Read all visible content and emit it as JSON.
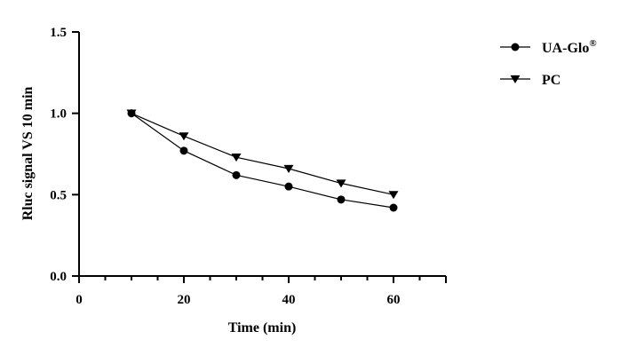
{
  "chart_data": {
    "type": "line",
    "xlabel": "Time (min)",
    "ylabel": "Rluc signal VS 10 min",
    "xlim": [
      0,
      70
    ],
    "ylim": [
      0.0,
      1.5
    ],
    "x_ticks": [
      0,
      20,
      40,
      60
    ],
    "x_tick_labels": [
      "0",
      "20",
      "40",
      "60"
    ],
    "x_minor_step": 5,
    "y_ticks": [
      0.0,
      0.5,
      1.0,
      1.5
    ],
    "y_tick_labels": [
      "0.0",
      "0.5",
      "1.0",
      "1.5"
    ],
    "grid": false,
    "legend_position": "top-right",
    "series": [
      {
        "name": "UA-Glo",
        "name_superscript": "®",
        "marker": "circle",
        "color": "#000000",
        "x": [
          10,
          20,
          30,
          40,
          50,
          60
        ],
        "y": [
          1.0,
          0.77,
          0.62,
          0.55,
          0.47,
          0.42
        ]
      },
      {
        "name": "PC",
        "marker": "triangle-down",
        "color": "#000000",
        "x": [
          10,
          20,
          30,
          40,
          50,
          60
        ],
        "y": [
          1.0,
          0.86,
          0.73,
          0.66,
          0.57,
          0.5
        ]
      }
    ]
  }
}
